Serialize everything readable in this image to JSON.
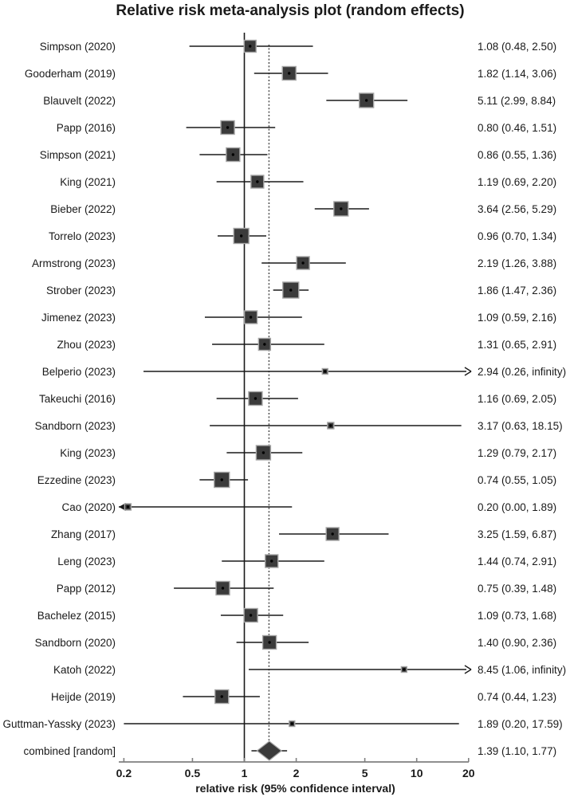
{
  "title": "Relative risk meta-analysis plot (random effects)",
  "colors": {
    "text": "#1a1a1a",
    "marker_fill": "#3b3b3b",
    "marker_stroke": "#a6a6a6",
    "ci_line": "#1a1a1a",
    "ref_line": "#1a1a1a",
    "pooled_dotted_line": "#555555",
    "axis_line": "#7f7f7f"
  },
  "chart_data": {
    "type": "forest",
    "title": "Relative risk meta-analysis plot (random effects)",
    "xlabel": "relative risk (95% confidence interval)",
    "x_scale": "log",
    "x_ticks": [
      "0.2",
      "0.5",
      "1",
      "2",
      "5",
      "10",
      "20"
    ],
    "x_tick_values": [
      0.2,
      0.5,
      1,
      2,
      5,
      10,
      20
    ],
    "xlim": [
      0.2,
      20
    ],
    "reference_line": 1,
    "pooled_estimate_line": 1.39,
    "studies": [
      {
        "label": "Simpson (2020)",
        "est": 1.08,
        "lo": 0.48,
        "hi": 2.5,
        "text": "1.08 (0.48, 2.50)",
        "size": 15,
        "arrow": null
      },
      {
        "label": "Gooderham (2019)",
        "est": 1.82,
        "lo": 1.14,
        "hi": 3.06,
        "text": "1.82 (1.14, 3.06)",
        "size": 17,
        "arrow": null
      },
      {
        "label": "Blauvelt (2022)",
        "est": 5.11,
        "lo": 2.99,
        "hi": 8.84,
        "text": "5.11 (2.99, 8.84)",
        "size": 18,
        "arrow": null
      },
      {
        "label": "Papp (2016)",
        "est": 0.8,
        "lo": 0.46,
        "hi": 1.51,
        "text": "0.80 (0.46, 1.51)",
        "size": 17,
        "arrow": null
      },
      {
        "label": "Simpson (2021)",
        "est": 0.86,
        "lo": 0.55,
        "hi": 1.36,
        "text": "0.86 (0.55, 1.36)",
        "size": 17,
        "arrow": null
      },
      {
        "label": "King (2021)",
        "est": 1.19,
        "lo": 0.69,
        "hi": 2.2,
        "text": "1.19 (0.69, 2.20)",
        "size": 16,
        "arrow": null
      },
      {
        "label": "Bieber (2022)",
        "est": 3.64,
        "lo": 2.56,
        "hi": 5.29,
        "text": "3.64 (2.56, 5.29)",
        "size": 18,
        "arrow": null
      },
      {
        "label": "Torrelo (2023)",
        "est": 0.96,
        "lo": 0.7,
        "hi": 1.34,
        "text": "0.96 (0.70, 1.34)",
        "size": 19,
        "arrow": null
      },
      {
        "label": "Armstrong (2023)",
        "est": 2.19,
        "lo": 1.26,
        "hi": 3.88,
        "text": "2.19 (1.26, 3.88)",
        "size": 16,
        "arrow": null
      },
      {
        "label": "Strober (2023)",
        "est": 1.86,
        "lo": 1.47,
        "hi": 2.36,
        "text": "1.86 (1.47, 2.36)",
        "size": 20,
        "arrow": null
      },
      {
        "label": "Jimenez (2023)",
        "est": 1.09,
        "lo": 0.59,
        "hi": 2.16,
        "text": "1.09 (0.59, 2.16)",
        "size": 16,
        "arrow": null
      },
      {
        "label": "Zhou (2023)",
        "est": 1.31,
        "lo": 0.65,
        "hi": 2.91,
        "text": "1.31 (0.65, 2.91)",
        "size": 15,
        "arrow": null
      },
      {
        "label": "Belperio (2023)",
        "est": 2.94,
        "lo": 0.26,
        "hi": null,
        "text": "2.94 (0.26, infinity)",
        "size": 7,
        "arrow": "right"
      },
      {
        "label": "Takeuchi (2016)",
        "est": 1.16,
        "lo": 0.69,
        "hi": 2.05,
        "text": "1.16 (0.69, 2.05)",
        "size": 17,
        "arrow": null
      },
      {
        "label": "Sandborn (2023)",
        "est": 3.17,
        "lo": 0.63,
        "hi": 18.15,
        "text": "3.17 (0.63, 18.15)",
        "size": 8,
        "arrow": null
      },
      {
        "label": "King (2023)",
        "est": 1.29,
        "lo": 0.79,
        "hi": 2.17,
        "text": "1.29 (0.79, 2.17)",
        "size": 18,
        "arrow": null
      },
      {
        "label": "Ezzedine (2023)",
        "est": 0.74,
        "lo": 0.55,
        "hi": 1.05,
        "text": "0.74 (0.55, 1.05)",
        "size": 19,
        "arrow": null
      },
      {
        "label": "Cao (2020)",
        "est": 0.2,
        "lo": null,
        "hi": 1.89,
        "text": "0.20 (0.00, 1.89)",
        "size": 8,
        "arrow": "left"
      },
      {
        "label": "Zhang (2017)",
        "est": 3.25,
        "lo": 1.59,
        "hi": 6.87,
        "text": "3.25 (1.59, 6.87)",
        "size": 16,
        "arrow": null
      },
      {
        "label": "Leng (2023)",
        "est": 1.44,
        "lo": 0.74,
        "hi": 2.91,
        "text": "1.44 (0.74, 2.91)",
        "size": 16,
        "arrow": null
      },
      {
        "label": "Papp (2012)",
        "est": 0.75,
        "lo": 0.39,
        "hi": 1.48,
        "text": "0.75 (0.39, 1.48)",
        "size": 17,
        "arrow": null
      },
      {
        "label": "Bachelez (2015)",
        "est": 1.09,
        "lo": 0.73,
        "hi": 1.68,
        "text": "1.09 (0.73, 1.68)",
        "size": 17,
        "arrow": null
      },
      {
        "label": "Sandborn (2020)",
        "est": 1.4,
        "lo": 0.9,
        "hi": 2.36,
        "text": "1.40 (0.90, 2.36)",
        "size": 17,
        "arrow": null
      },
      {
        "label": "Katoh (2022)",
        "est": 8.45,
        "lo": 1.06,
        "hi": null,
        "text": "8.45 (1.06, infinity)",
        "size": 7,
        "arrow": "right"
      },
      {
        "label": "Heijde (2019)",
        "est": 0.74,
        "lo": 0.44,
        "hi": 1.23,
        "text": "0.74 (0.44, 1.23)",
        "size": 17,
        "arrow": null
      },
      {
        "label": "Guttman-Yassky (2023)",
        "est": 1.89,
        "lo": 0.2,
        "hi": 17.59,
        "text": "1.89 (0.20, 17.59)",
        "size": 7,
        "arrow": null
      }
    ],
    "pooled": {
      "label": "combined [random]",
      "est": 1.39,
      "lo": 1.1,
      "hi": 1.77,
      "text": "1.39 (1.10, 1.77)",
      "shape": "diamond"
    }
  }
}
